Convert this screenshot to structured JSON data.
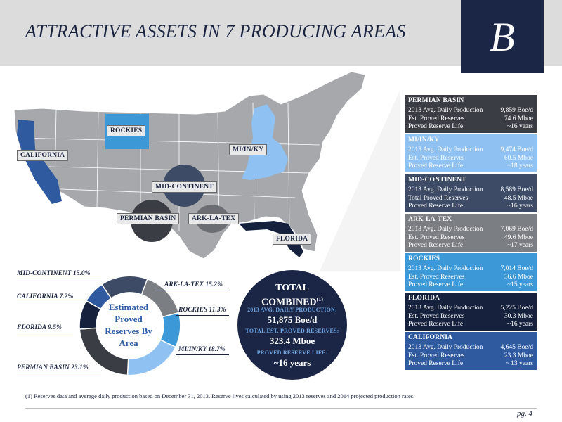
{
  "header": {
    "title": "ATTRACTIVE ASSETS IN 7 PRODUCING AREAS",
    "logo_letter": "B"
  },
  "map": {
    "labels": {
      "rockies": "ROCKIES",
      "california": "CALIFORNIA",
      "mi_in_ky": "MI/IN/KY",
      "mid_continent": "MID-CONTINENT",
      "permian": "PERMIAN BASIN",
      "ark_la_tex": "ARK-LA-TEX",
      "florida": "FLORIDA"
    }
  },
  "panels": [
    {
      "name": "PERMIAN BASIN",
      "color": "#3a3d44",
      "rows": [
        [
          "2013 Avg. Daily Production",
          "9,859 Boe/d"
        ],
        [
          "Est. Proved Reserves",
          "74.6 Mboe"
        ],
        [
          "Proved Reserve Life",
          "~16 years"
        ]
      ]
    },
    {
      "name": "MI/IN/KY",
      "color": "#8fc2f2",
      "rows": [
        [
          "2013 Avg. Daily Production",
          "9,474 Boe/d"
        ],
        [
          "Est. Proved Reserves",
          "60.5 Mboe"
        ],
        [
          "Proved Reserve Life",
          "~18 years"
        ]
      ]
    },
    {
      "name": "MID-CONTINENT",
      "color": "#3d4b66",
      "rows": [
        [
          "2013 Avg. Daily Production",
          "8,589 Boe/d"
        ],
        [
          "Total Proved Reserves",
          "48.5 Mboe"
        ],
        [
          "Proved Reserve Life",
          "~16 years"
        ]
      ]
    },
    {
      "name": "ARK-LA-TEX",
      "color": "#7b7e83",
      "rows": [
        [
          "2013 Avg. Daily Production",
          "7,069 Boe/d"
        ],
        [
          "Est. Proved Reserves",
          "49.6 Mboe"
        ],
        [
          "Proved Reserve Life",
          "~17 years"
        ]
      ]
    },
    {
      "name": "ROCKIES",
      "color": "#3c98d6",
      "rows": [
        [
          "2013 Avg. Daily Production",
          "7,014 Boe/d"
        ],
        [
          "Est. Proved Reserves",
          "36.6 Mboe"
        ],
        [
          "Proved Reserve Life",
          "~15 years"
        ]
      ]
    },
    {
      "name": "FLORIDA",
      "color": "#16213d",
      "rows": [
        [
          "2013 Avg. Daily Production",
          "5,225 Boe/d"
        ],
        [
          "Est. Proved Reserves",
          "30.3 Mboe"
        ],
        [
          "Proved Reserve Life",
          "~16 years"
        ]
      ]
    },
    {
      "name": "CALIFORNIA",
      "color": "#2f5aa0",
      "rows": [
        [
          "2013 Avg. Daily Production",
          "4,645 Boe/d"
        ],
        [
          "Est. Proved Reserves",
          "23.3 Mboe"
        ],
        [
          "Proved Reserve Life",
          "~ 13 years"
        ]
      ]
    }
  ],
  "chart_data": {
    "type": "pie",
    "title": "Estimated Proved Reserves By Area",
    "slices": [
      {
        "label": "ARK-LA-TEX",
        "value": 15.2,
        "display": "ARK-LA-TEX  15.2%",
        "color": "#7b7e83"
      },
      {
        "label": "ROCKIES",
        "value": 11.3,
        "display": "ROCKIES 11.3%",
        "color": "#3c98d6"
      },
      {
        "label": "MI/IN/KY",
        "value": 18.7,
        "display": "MI/IN/KY 18.7%",
        "color": "#8fc2f2"
      },
      {
        "label": "PERMIAN BASIN",
        "value": 23.1,
        "display": "PERMIAN BASIN 23.1%",
        "color": "#3a3d44"
      },
      {
        "label": "FLORIDA",
        "value": 9.5,
        "display": "FLORIDA  9.5%",
        "color": "#16213d"
      },
      {
        "label": "CALIFORNIA",
        "value": 7.2,
        "display": "CALIFORNIA 7.2%",
        "color": "#2f5aa0"
      },
      {
        "label": "MID-CONTINENT",
        "value": 15.0,
        "display": "MID-CONTINENT 15.0%",
        "color": "#3d4b66"
      }
    ]
  },
  "total": {
    "title_line1": "TOTAL",
    "title_line2": "COMBINED",
    "title_sup": "(1)",
    "production_label": "2013 AVG. DAILY PRODUCTION:",
    "production_value": "51,875 Boe/d",
    "reserves_label": "TOTAL EST. PROVED RESERVES:",
    "reserves_value": "323.4 Mboe",
    "life_label": "PROVED RESERVE LIFE:",
    "life_value": "~16 years"
  },
  "footnote": "(1)  Reserves data and average daily production based on December 31, 2013. Reserve lives calculated by using 2013 reserves and 2014 projected production rates.",
  "page": "pg. 4"
}
